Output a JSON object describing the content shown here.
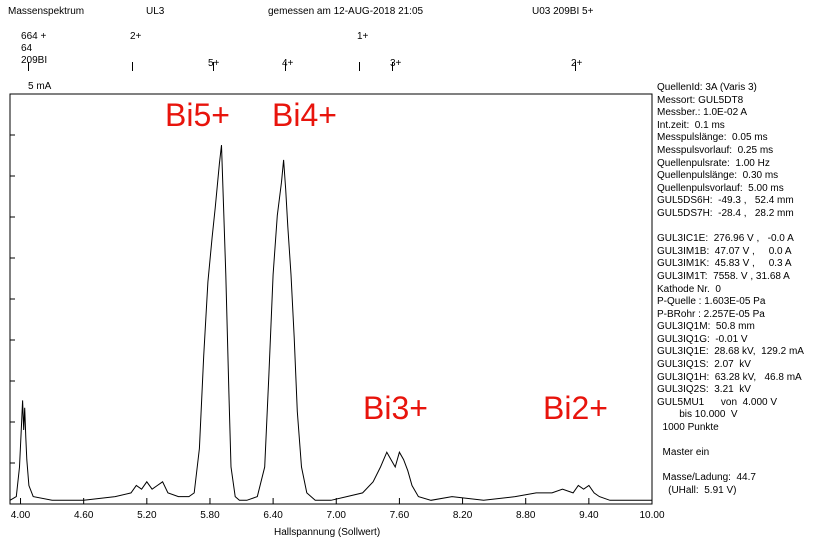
{
  "header": {
    "title": "Massenspektrum",
    "file": "UL3",
    "measured": "gemessen am 12-AUG-2018 21:05",
    "tag": "U03  209BI   5+"
  },
  "top_marks": {
    "row1": [
      "64 +",
      "2+",
      "1+"
    ],
    "row1_prefix": "6",
    "row2": [
      "64"
    ],
    "row3": [
      "209BI",
      "5+",
      "4+",
      "3+",
      "2+"
    ]
  },
  "ylabel": "5 mA",
  "peaks": {
    "bi5": "Bi5+",
    "bi4": "Bi4+",
    "bi3": "Bi3+",
    "bi2": "Bi2+"
  },
  "info_lines": [
    "QuellenId: 3A (Varis 3)",
    "Messort: GUL5DT8",
    "Messber.: 1.0E-02 A",
    "Int.zeit:  0.1 ms",
    "Messpulslänge:  0.05 ms",
    "Messpulsvorlauf:  0.25 ms",
    "Quellenpulsrate:  1.00 Hz",
    "Quellenpulslänge:  0.30 ms",
    "Quellenpulsvorlauf:  5.00 ms",
    "GUL5DS6H:  -49.3 ,   52.4 mm",
    "GUL5DS7H:  -28.4 ,   28.2 mm",
    "",
    "GUL3IC1E:  276.96 V ,   -0.0 A",
    "GUL3IM1B:  47.07 V ,     0.0 A",
    "GUL3IM1K:  45.83 V ,     0.3 A",
    "GUL3IM1T:  7558. V , 31.68 A",
    "Kathode Nr.  0",
    "P-Quelle : 1.603E-05 Pa",
    "P-BRohr : 2.257E-05 Pa",
    "GUL3IQ1M:  50.8 mm",
    "GUL3IQ1G:  -0.01 V",
    "GUL3IQ1E:  28.68 kV,  129.2 mA",
    "GUL3IQ1S:  2.07  kV",
    "GUL3IQ1H:  63.28 kV,   46.8 mA",
    "GUL3IQ2S:  3.21  kV",
    "GUL5MU1      von  4.000 V",
    "        bis 10.000  V",
    "  1000 Punkte",
    "",
    "  Master ein",
    "",
    "  Masse/Ladung:  44.7",
    "    (UHall:  5.91 V)"
  ],
  "chart_data": {
    "type": "line",
    "xlabel": "Hallspannung (Sollwert)",
    "ylabel": "5 mA",
    "xlim": [
      3.9,
      10.0
    ],
    "ylim": [
      0,
      1
    ],
    "x_ticks": [
      "4.00",
      "4.60",
      "5.20",
      "5.80",
      "6.40",
      "7.00",
      "7.60",
      "8.20",
      "8.80",
      "9.40",
      "10.00"
    ],
    "x_tick_values": [
      4.0,
      4.6,
      5.2,
      5.8,
      6.4,
      7.0,
      7.6,
      8.2,
      8.8,
      9.4,
      10.0
    ],
    "series": [
      {
        "color": "#000000",
        "x": [
          3.9,
          3.96,
          3.99,
          4.01,
          4.02,
          4.03,
          4.04,
          4.05,
          4.06,
          4.08,
          4.12,
          4.3,
          4.6,
          4.9,
          5.05,
          5.1,
          5.15,
          5.2,
          5.25,
          5.3,
          5.35,
          5.4,
          5.5,
          5.6,
          5.65,
          5.7,
          5.74,
          5.78,
          5.82,
          5.85,
          5.87,
          5.89,
          5.91,
          5.93,
          5.95,
          5.98,
          6.0,
          6.04,
          6.08,
          6.15,
          6.25,
          6.32,
          6.36,
          6.4,
          6.44,
          6.48,
          6.5,
          6.52,
          6.54,
          6.57,
          6.6,
          6.63,
          6.67,
          6.72,
          6.8,
          6.95,
          7.1,
          7.25,
          7.35,
          7.42,
          7.48,
          7.52,
          7.56,
          7.6,
          7.64,
          7.68,
          7.72,
          7.78,
          7.9,
          8.1,
          8.4,
          8.7,
          8.9,
          9.05,
          9.15,
          9.25,
          9.3,
          9.35,
          9.4,
          9.45,
          9.5,
          9.6,
          9.8,
          10.0
        ],
        "values": [
          0.01,
          0.02,
          0.1,
          0.22,
          0.28,
          0.2,
          0.26,
          0.18,
          0.12,
          0.05,
          0.02,
          0.01,
          0.01,
          0.02,
          0.03,
          0.05,
          0.04,
          0.06,
          0.04,
          0.05,
          0.06,
          0.03,
          0.02,
          0.02,
          0.03,
          0.15,
          0.4,
          0.6,
          0.72,
          0.8,
          0.86,
          0.92,
          0.97,
          0.8,
          0.62,
          0.3,
          0.1,
          0.02,
          0.01,
          0.01,
          0.02,
          0.1,
          0.35,
          0.62,
          0.78,
          0.87,
          0.93,
          0.85,
          0.75,
          0.62,
          0.45,
          0.25,
          0.1,
          0.03,
          0.01,
          0.01,
          0.02,
          0.03,
          0.06,
          0.1,
          0.14,
          0.12,
          0.1,
          0.14,
          0.12,
          0.09,
          0.05,
          0.02,
          0.01,
          0.02,
          0.01,
          0.02,
          0.03,
          0.03,
          0.04,
          0.03,
          0.05,
          0.04,
          0.05,
          0.03,
          0.02,
          0.01,
          0.01,
          0.01
        ]
      }
    ]
  }
}
